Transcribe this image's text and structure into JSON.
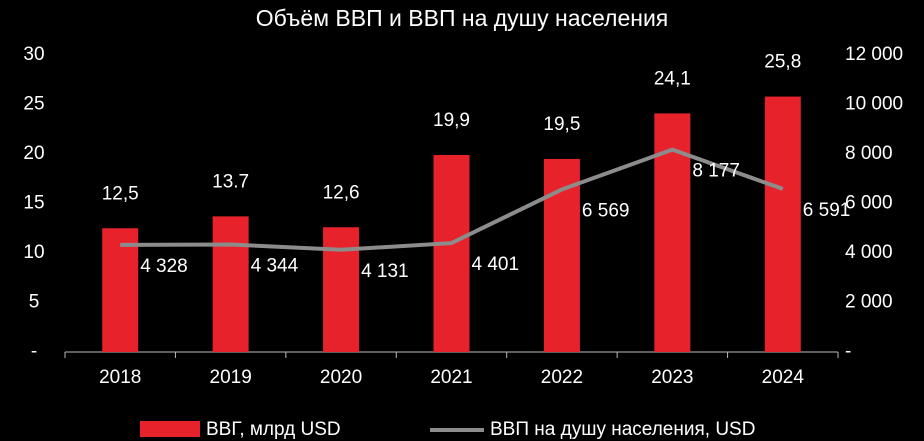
{
  "chart_data": {
    "type": "bar_line",
    "title": "Объём ВВП и ВВП на душу населения",
    "categories": [
      "2018",
      "2019",
      "2020",
      "2021",
      "2022",
      "2023",
      "2024"
    ],
    "series": [
      {
        "name": "ВВГ, млрд USD",
        "color": "#e8222a",
        "type": "bar",
        "values": [
          12.5,
          13.7,
          12.6,
          19.9,
          19.5,
          24.1,
          25.8
        ],
        "value_labels": [
          "12,5",
          "13.7",
          "12,6",
          "19,9",
          "19,5",
          "24,1",
          "25,8"
        ]
      },
      {
        "name": "ВВП на душу населения, USD",
        "color": "#8c8c8c",
        "type": "line",
        "axis": "y2",
        "values": [
          4328,
          4344,
          4131,
          4401,
          6569,
          8177,
          6591
        ],
        "value_labels": [
          "4 328",
          "4 344",
          "4 131",
          "4 401",
          "6 569",
          "8 177",
          "6 591"
        ]
      }
    ],
    "ylim": [
      0,
      30
    ],
    "yticks": [
      {
        "value": 0,
        "label": "-"
      },
      5,
      10,
      15,
      20,
      25,
      30
    ],
    "y2lim": [
      0,
      12000
    ],
    "y2ticks": [
      {
        "value": 0,
        "label": "-"
      },
      {
        "value": 2000,
        "label": "2 000"
      },
      {
        "value": 4000,
        "label": "4 000"
      },
      {
        "value": 6000,
        "label": "6 000"
      },
      {
        "value": 8000,
        "label": "8 000"
      },
      {
        "value": 10000,
        "label": "10 000"
      },
      {
        "value": 12000,
        "label": "12 000"
      }
    ],
    "grid": false
  }
}
